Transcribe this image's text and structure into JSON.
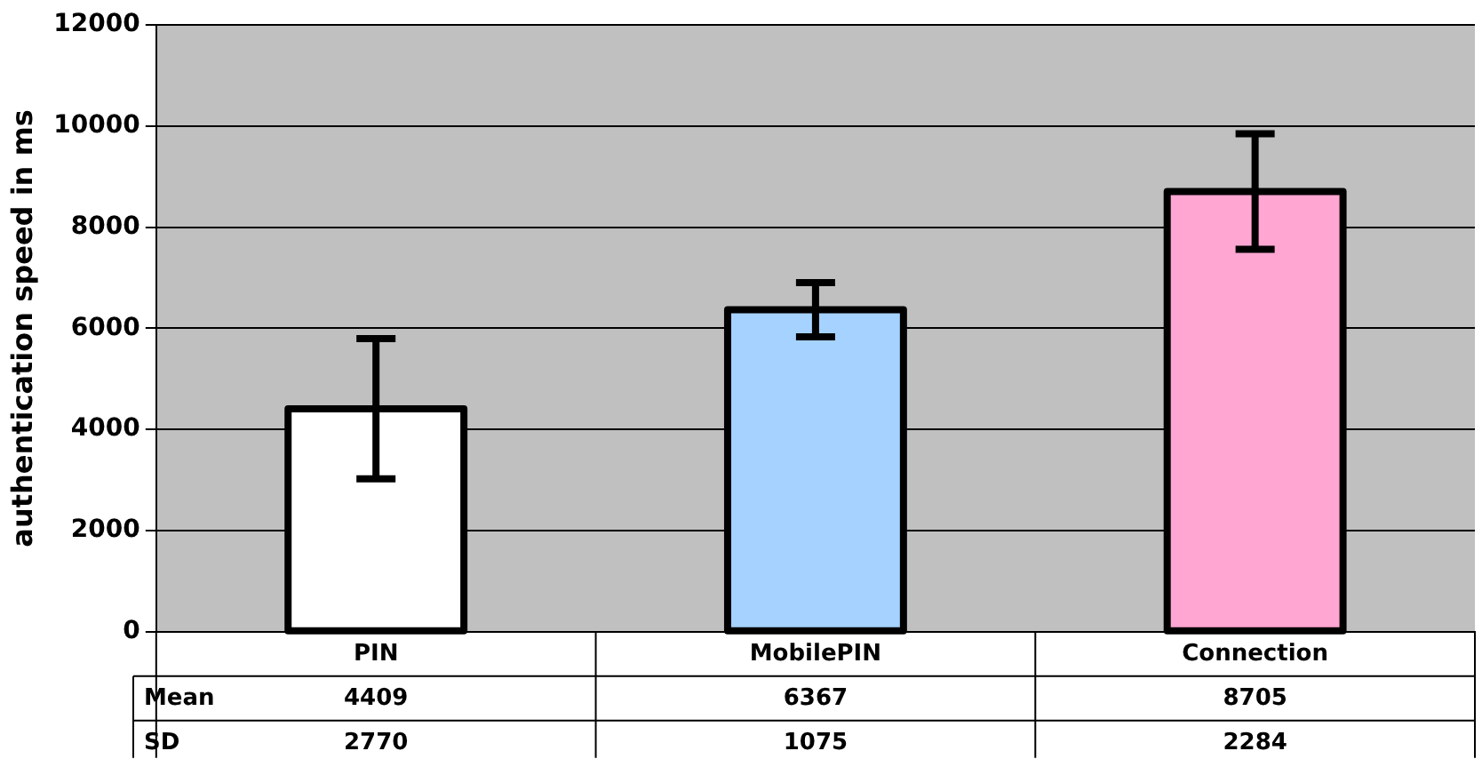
{
  "chart_data": {
    "type": "bar",
    "ylabel": "authentication speed in ms",
    "categories": [
      "PIN",
      "MobilePIN",
      "Connection"
    ],
    "series": [
      {
        "name": "Mean",
        "values": [
          4409,
          6367,
          8705
        ],
        "colors": [
          "#ffffff",
          "#a6d2ff",
          "#ffa6d2"
        ],
        "errors": [
          1385,
          537.5,
          1142
        ]
      }
    ],
    "ylim": [
      0,
      12000
    ],
    "yticks": [
      0,
      2000,
      4000,
      6000,
      8000,
      10000,
      12000
    ],
    "grid": "y",
    "legend": false,
    "data_labels": true,
    "annotations": [
      "SD",
      "2770",
      "1075",
      "2284"
    ]
  }
}
